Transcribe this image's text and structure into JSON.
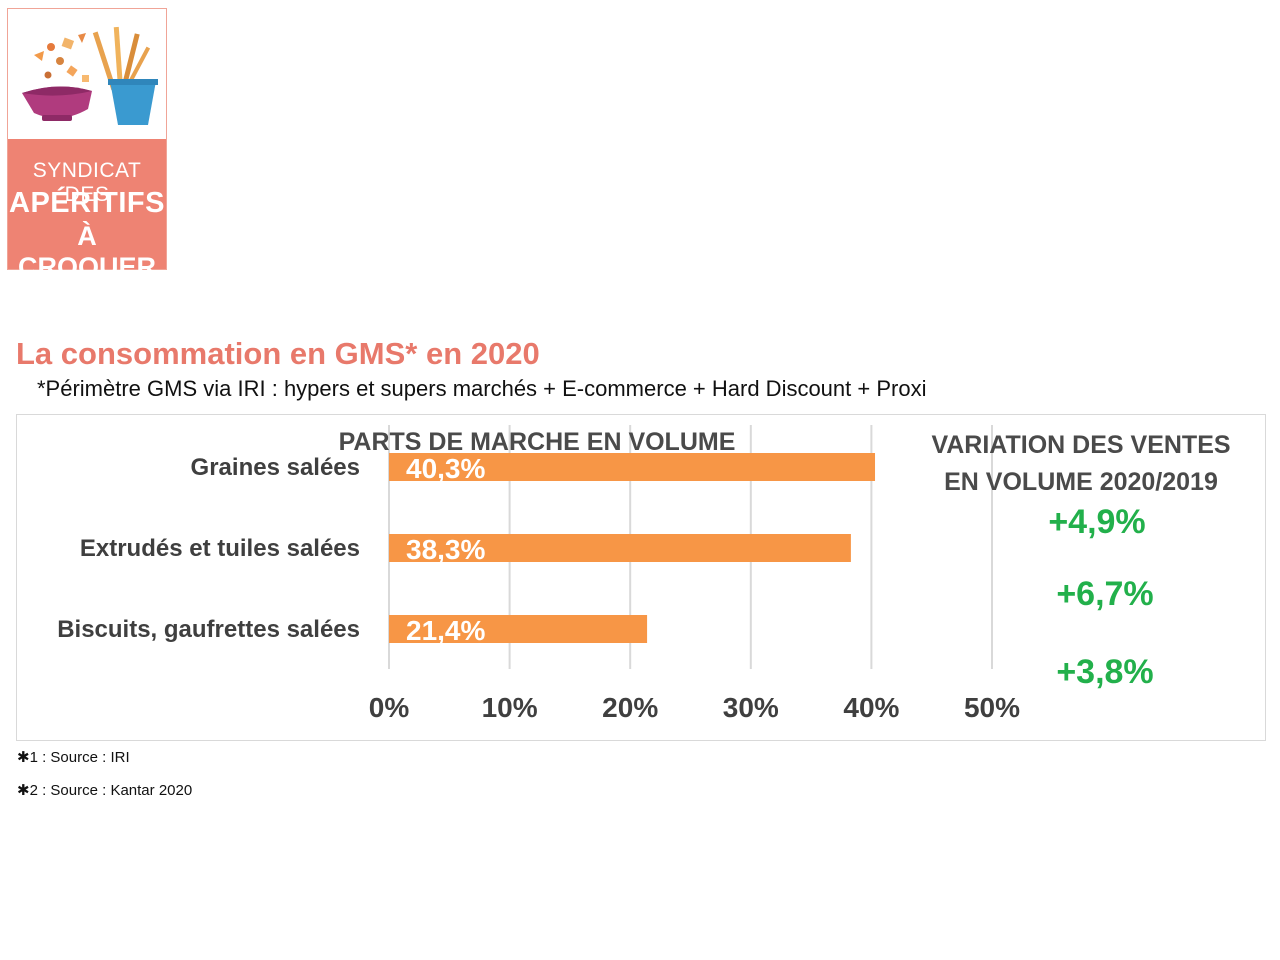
{
  "logo": {
    "line1": "SYNDICAT DES",
    "line2": "APÉRITIFS",
    "line3": "À CROQUER"
  },
  "page": {
    "title": "La consommation en GMS* en 2020",
    "subtitle": "*Périmètre GMS via IRI : hypers et supers marchés + E-commerce + Hard Discount + Proxi"
  },
  "chart_data": {
    "type": "bar",
    "orientation": "horizontal",
    "title": "PARTS DE MARCHE EN VOLUME",
    "categories": [
      "Graines salées",
      "Extrudés et tuiles salées",
      "Biscuits, gaufrettes salées"
    ],
    "values": [
      40.3,
      38.3,
      21.4
    ],
    "data_labels": [
      "40,3%",
      "38,3%",
      "21,4%"
    ],
    "xlim": [
      0,
      50
    ],
    "ticks": [
      "0%",
      "10%",
      "20%",
      "30%",
      "40%",
      "50%"
    ],
    "grid": true,
    "colors": {
      "bar": "#f79646",
      "grid": "#d9d9d9",
      "label": "#ffffff"
    },
    "variation": {
      "title_line1": "VARIATION DES VENTES",
      "title_line2": "EN VOLUME 2020/2019",
      "values": [
        "+4,9%",
        "+6,7%",
        "+3,8%"
      ],
      "color": "#22b04b"
    }
  },
  "footnotes": [
    "1 : Source : IRI",
    "2 : Source : Kantar 2020"
  ]
}
